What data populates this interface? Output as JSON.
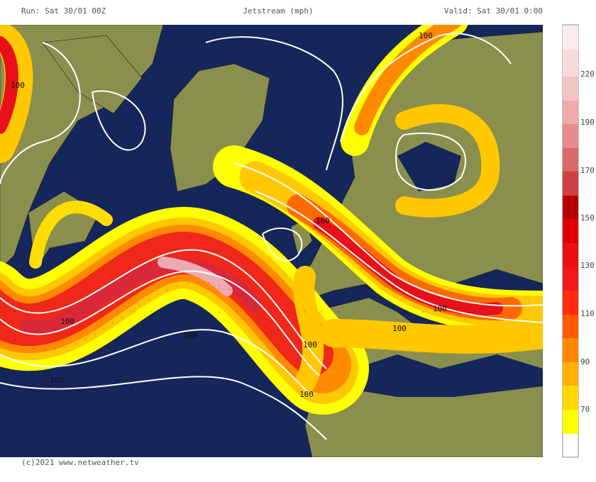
{
  "header": {
    "run": "Run: Sat 30/01 00Z",
    "title": "Jetstream (mph)",
    "valid": "Valid: Sat 30/01 0:00"
  },
  "footer": "(c)2021 www.netweather.tv",
  "colorbar": {
    "labels": [
      "70",
      "90",
      "110",
      "130",
      "150",
      "170",
      "190",
      "220"
    ]
  },
  "contour_labels": [
    "100",
    "100",
    "100",
    "100",
    "100",
    "100",
    "100",
    "100",
    "100",
    "100"
  ]
}
